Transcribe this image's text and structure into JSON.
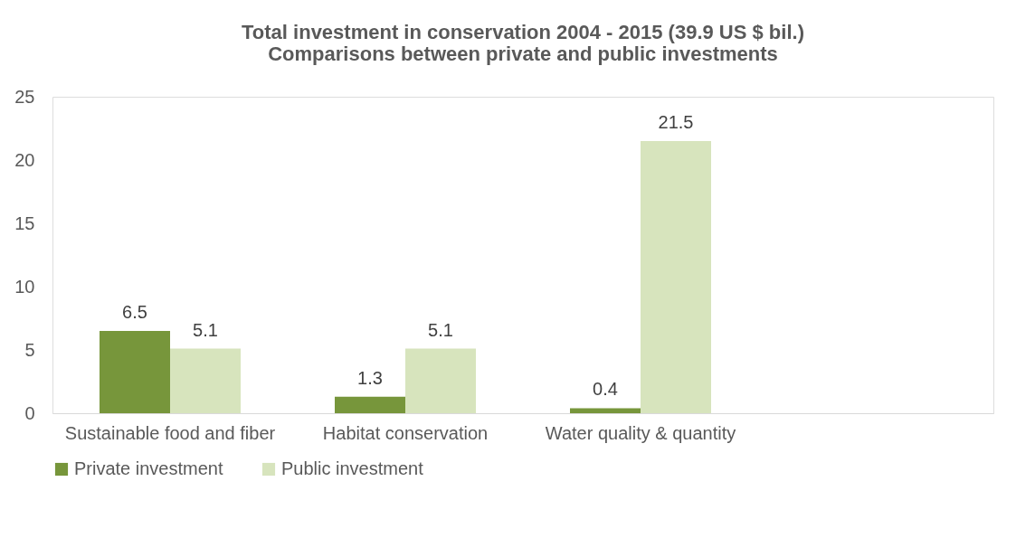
{
  "chart_data": {
    "type": "bar",
    "title": [
      "Total investment in conservation 2004 - 2015 (39.9 US $ bil.)",
      "Comparisons between private and public investments"
    ],
    "categories": [
      "Sustainable food and fiber",
      "Habitat conservation",
      "Water quality & quantity",
      null
    ],
    "series": [
      {
        "name": "Private investment",
        "color": "#77963b",
        "values": [
          6.5,
          1.3,
          0.4,
          null
        ]
      },
      {
        "name": "Public investment",
        "color": "#d7e4bd",
        "values": [
          5.1,
          5.1,
          21.5,
          null
        ]
      }
    ],
    "ylim": [
      0,
      25
    ],
    "yticks": [
      0,
      5,
      10,
      15,
      20,
      25
    ],
    "grid": false,
    "legend": "bottom",
    "data_labels": true
  }
}
